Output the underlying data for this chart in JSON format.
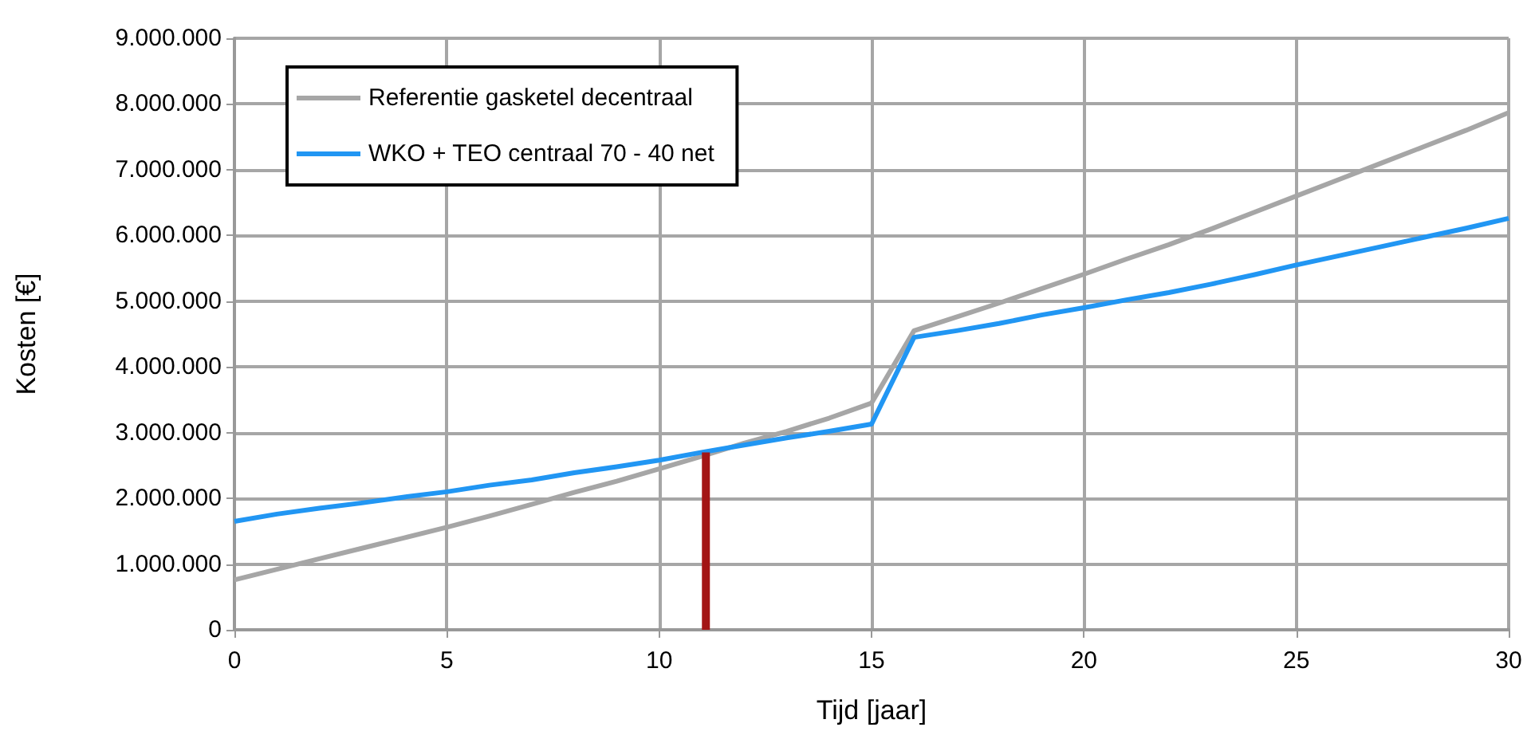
{
  "chart_data": {
    "type": "line",
    "xlabel": "Tijd [jaar]",
    "ylabel": "Kosten [€]",
    "x": [
      0,
      1,
      2,
      3,
      4,
      5,
      6,
      7,
      8,
      9,
      10,
      11,
      12,
      13,
      14,
      15,
      16,
      17,
      18,
      19,
      20,
      21,
      22,
      23,
      24,
      25,
      26,
      27,
      28,
      29,
      30
    ],
    "series": [
      {
        "name": "Referentie gasketel decentraal",
        "color": "#a6a6a6",
        "values": [
          760000,
          920000,
          1080000,
          1240000,
          1400000,
          1560000,
          1730000,
          1910000,
          2090000,
          2260000,
          2450000,
          2640000,
          2840000,
          3020000,
          3220000,
          3450000,
          4550000,
          4760000,
          4970000,
          5190000,
          5410000,
          5640000,
          5860000,
          6100000,
          6350000,
          6600000,
          6850000,
          7100000,
          7350000,
          7600000,
          7870000
        ]
      },
      {
        "name": "WKO + TEO centraal 70 - 40 net",
        "color": "#2196f3",
        "values": [
          1650000,
          1760000,
          1850000,
          1930000,
          2020000,
          2100000,
          2200000,
          2280000,
          2390000,
          2480000,
          2580000,
          2700000,
          2810000,
          2920000,
          3020000,
          3130000,
          4450000,
          4550000,
          4660000,
          4790000,
          4900000,
          5020000,
          5130000,
          5260000,
          5400000,
          5550000,
          5690000,
          5830000,
          5970000,
          6110000,
          6260000
        ]
      },
      {
        "color": "#a31515",
        "x": [
          11.1,
          11.1
        ],
        "values": [
          0,
          2700000
        ]
      }
    ],
    "xlim": [
      0,
      30
    ],
    "xticks": [
      0,
      5,
      10,
      15,
      20,
      25,
      30
    ],
    "ylim": [
      0,
      9000000
    ],
    "yticks": [
      {
        "value": 0,
        "label": "0"
      },
      {
        "value": 1000000,
        "label": "1.000.000"
      },
      {
        "value": 2000000,
        "label": "2.000.000"
      },
      {
        "value": 3000000,
        "label": "3.000.000"
      },
      {
        "value": 4000000,
        "label": "4.000.000"
      },
      {
        "value": 5000000,
        "label": "5.000.000"
      },
      {
        "value": 6000000,
        "label": "6.000.000"
      },
      {
        "value": 7000000,
        "label": "7.000.000"
      },
      {
        "value": 8000000,
        "label": "8.000.000"
      },
      {
        "value": 9000000,
        "label": "9.000.000"
      }
    ],
    "grid": true,
    "legend": "top left",
    "marker": "none",
    "line_style": "solid"
  }
}
